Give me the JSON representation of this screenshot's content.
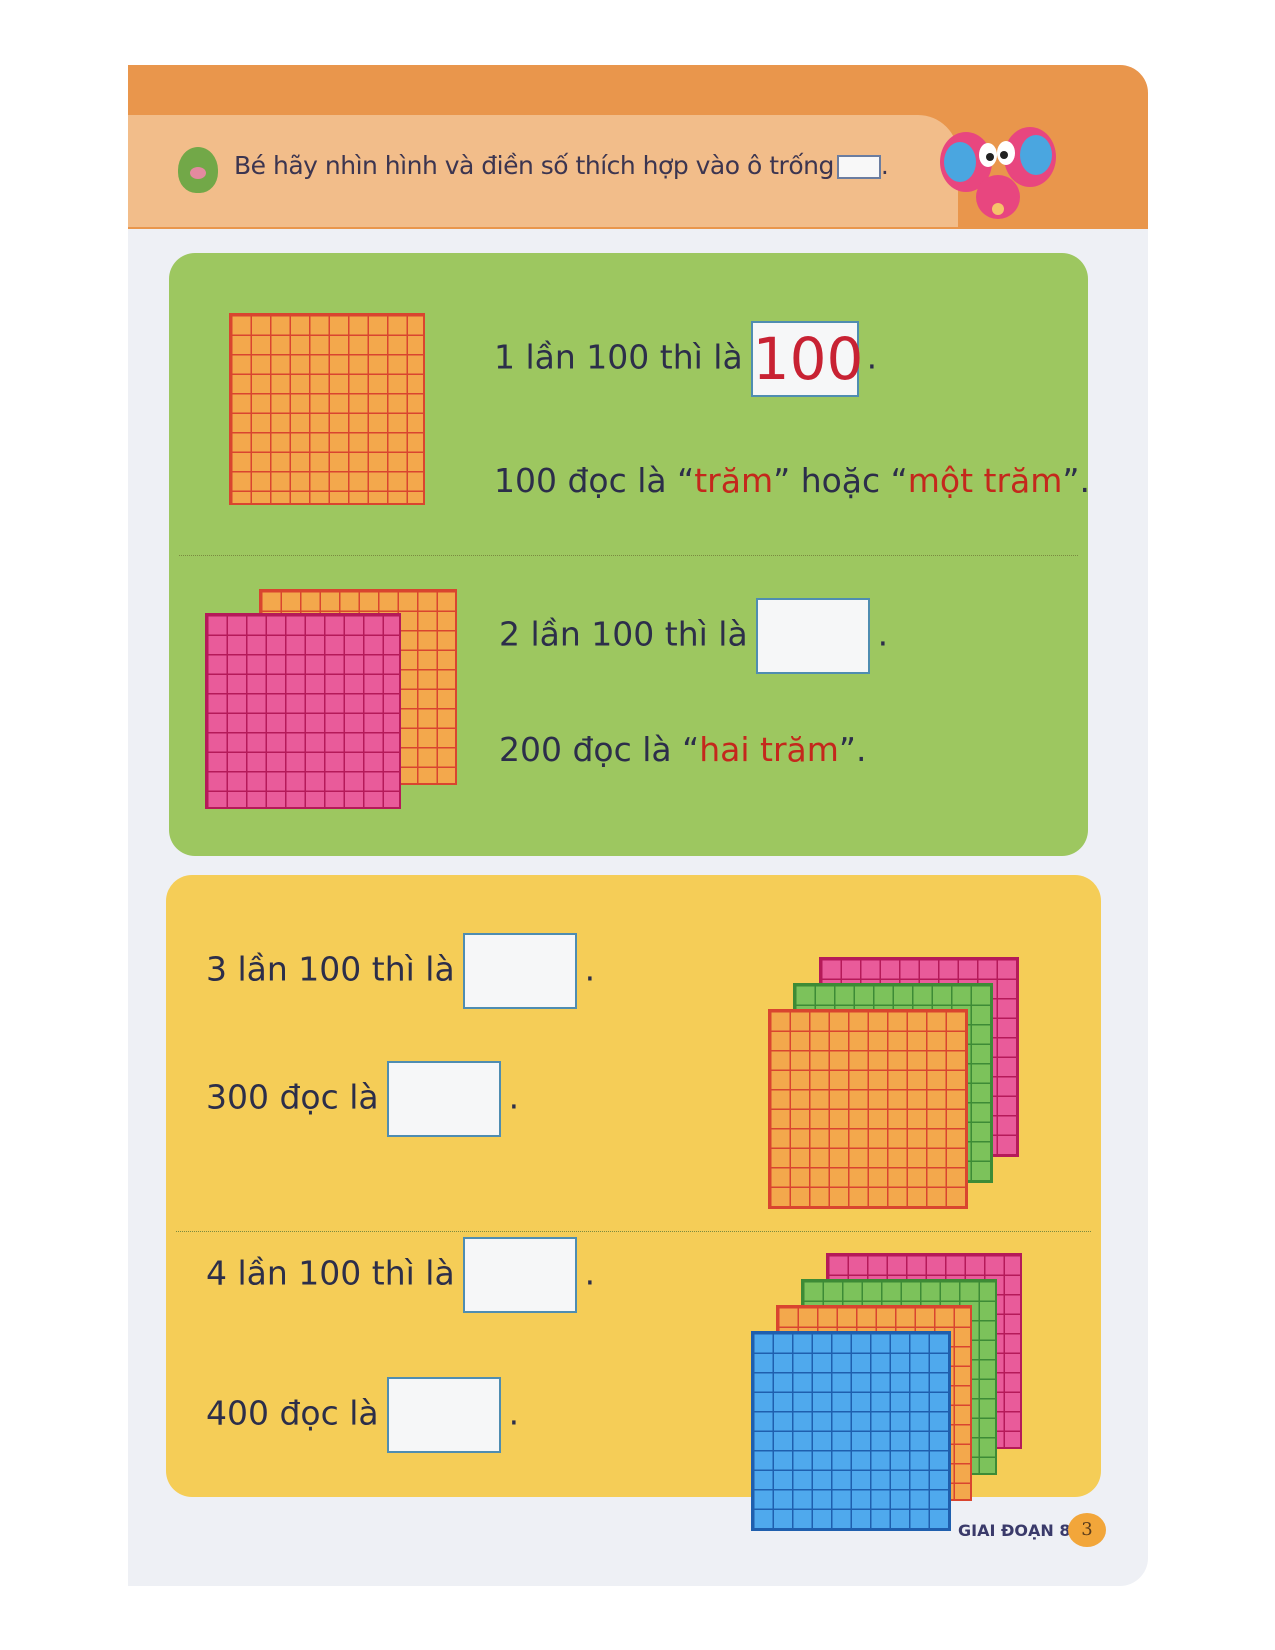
{
  "header": {
    "instruction": "Bé hãy nhìn hình và điền số thích hợp vào ô trống",
    "instruction_end": "."
  },
  "green_section": {
    "row1": {
      "line1_pre": "1 lần 100 thì là",
      "line1_answer": "100",
      "dot": ".",
      "line2_pre": "100 đọc là “",
      "line2_word1": "trăm",
      "line2_mid": "” hoặc “",
      "line2_word2": "một trăm",
      "line2_end": "”."
    },
    "row2": {
      "line1_pre": "2 lần 100 thì là",
      "dot": ".",
      "line2_pre": "200 đọc là “",
      "line2_word": "hai trăm",
      "line2_end": "”."
    }
  },
  "yellow_section": {
    "row3": {
      "line1_pre": "3 lần 100 thì là",
      "line2_pre": "300 đọc là",
      "dot": "."
    },
    "row4": {
      "line1_pre": "4 lần 100 thì là",
      "line2_pre": "400 đọc là",
      "dot": "."
    }
  },
  "footer": {
    "stage": "GIAI ĐOẠN 8",
    "page_number": "3"
  },
  "colors": {
    "green_panel": "#9dc760",
    "yellow_panel": "#f5cd57",
    "header": "#e9964c",
    "highlight_text": "#c4281c"
  }
}
